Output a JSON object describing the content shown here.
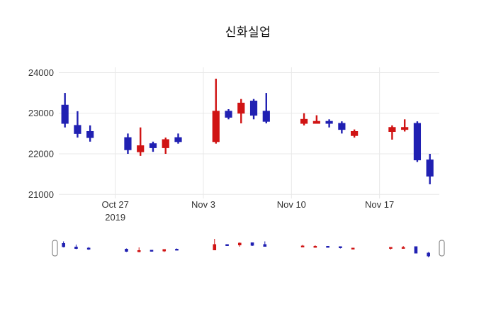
{
  "chart_data": {
    "type": "candlestick",
    "title": "신화실업",
    "x": [
      "2019-10-23",
      "2019-10-24",
      "2019-10-25",
      "2019-10-28",
      "2019-10-29",
      "2019-10-30",
      "2019-10-31",
      "2019-11-01",
      "2019-11-04",
      "2019-11-05",
      "2019-11-06",
      "2019-11-07",
      "2019-11-08",
      "2019-11-11",
      "2019-11-12",
      "2019-11-13",
      "2019-11-14",
      "2019-11-15",
      "2019-11-18",
      "2019-11-19",
      "2019-11-20",
      "2019-11-21"
    ],
    "open": [
      23200,
      22700,
      22550,
      22400,
      22050,
      22250,
      22150,
      22400,
      22300,
      23050,
      23000,
      23300,
      23050,
      22750,
      22750,
      22800,
      22750,
      22450,
      22550,
      22600,
      22750,
      21850
    ],
    "high": [
      23500,
      23050,
      22700,
      22500,
      22650,
      22300,
      22400,
      22500,
      23850,
      23100,
      23350,
      23350,
      23500,
      23000,
      22950,
      22850,
      22800,
      22600,
      22700,
      22850,
      22800,
      22000
    ],
    "low": [
      22650,
      22400,
      22300,
      22000,
      21950,
      22050,
      22000,
      22250,
      22250,
      22850,
      22750,
      22850,
      22750,
      22700,
      22750,
      22650,
      22500,
      22400,
      22350,
      22550,
      21800,
      21250
    ],
    "close": [
      22750,
      22500,
      22400,
      22100,
      22200,
      22150,
      22350,
      22300,
      23050,
      22900,
      23250,
      22950,
      22800,
      22850,
      22800,
      22750,
      22600,
      22550,
      22650,
      22650,
      21850,
      21450
    ],
    "increasing_color": "#d01414",
    "decreasing_color": "#2020b2",
    "grid_color": "#e8e8e8",
    "yticks": [
      21000,
      22000,
      23000,
      24000
    ],
    "xticks": [
      {
        "date": "2019-10-27",
        "label": "Oct 27",
        "sub": "2019"
      },
      {
        "date": "2019-11-03",
        "label": "Nov 3"
      },
      {
        "date": "2019-11-10",
        "label": "Nov 10"
      },
      {
        "date": "2019-11-17",
        "label": "Nov 17"
      }
    ],
    "ylim": [
      20900,
      24130
    ],
    "xlim": [
      "2019-10-22T15:00:00Z",
      "2019-11-21T18:00:00Z"
    ],
    "rangeslider": true,
    "legend": "none",
    "xlabel": "",
    "ylabel": ""
  }
}
